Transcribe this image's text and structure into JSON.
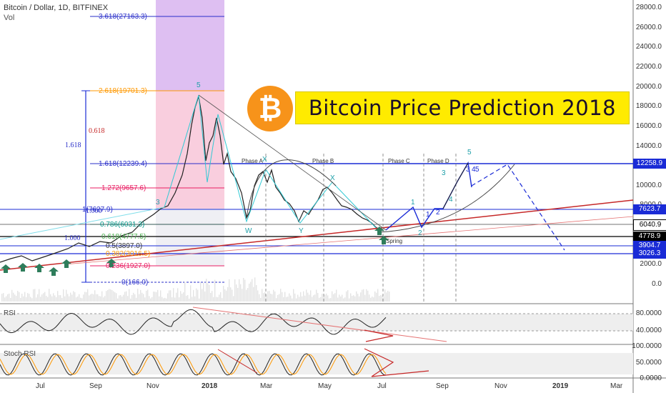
{
  "header": {
    "symbol": "Bitcoin / Dollar, 1D, BITFINEX",
    "volume_label": "Vol"
  },
  "title_banner": "Bitcoin Price Prediction 2018",
  "logo_glyph": "₿",
  "panels": {
    "rsi_label": "RSI",
    "stoch_label": "Stoch RSI"
  },
  "chart_data": {
    "type": "line",
    "x_ticks": [
      "Jul",
      "Sep",
      "Nov",
      "2018",
      "Mar",
      "May",
      "Jul",
      "Sep",
      "Nov",
      "2019",
      "Mar"
    ],
    "y_ticks": [
      "28000.0",
      "26000.0",
      "24000.0",
      "22000.0",
      "20000.0",
      "18000.0",
      "16000.0",
      "14000.0",
      "12000.0",
      "10000.0",
      "8000.0",
      "6000.0",
      "4000.0",
      "2000.0",
      "0.0"
    ],
    "price_tags": [
      {
        "label": "12258.9",
        "color": "#1a2bd6"
      },
      {
        "label": "7623.7",
        "color": "#1a2bd6"
      },
      {
        "label": "6040.9",
        "color": "#ffffff"
      },
      {
        "label": "4778.9",
        "color": "#000000"
      },
      {
        "label": "3904.7",
        "color": "#1a2bd6"
      },
      {
        "label": "3026.3",
        "color": "#1a2bd6"
      }
    ],
    "fib_levels_left": [
      {
        "label": "3.618(27163.3)",
        "color": "#2a2fc9"
      },
      {
        "label": "2.618(19701.3)",
        "color": "#ff9800"
      },
      {
        "label": "1.618(12239.4)",
        "color": "#2a2fc9"
      },
      {
        "label": "1.272(9657.6)",
        "color": "#e91e63"
      },
      {
        "label": "1(7627.9)",
        "color": "#2a2fc9"
      },
      {
        "label": "0.786(6031.3)",
        "color": "#009688"
      },
      {
        "label": "0.618(4777.5)",
        "color": "#4caf50"
      },
      {
        "label": "0.5(3897.0)",
        "color": "#333333"
      },
      {
        "label": "0.382(3016.5)",
        "color": "#ff9800"
      },
      {
        "label": "0.236(1927.0)",
        "color": "#e91e63"
      },
      {
        "label": "0(166.0)",
        "color": "#2a2fc9"
      }
    ],
    "fib_ratio_labels": [
      {
        "label": "1.618",
        "color": "#2a2fc9"
      },
      {
        "label": "0.618",
        "color": "#c62828"
      },
      {
        "label": "1.000",
        "color": "#2a2fc9"
      },
      {
        "label": "1.000",
        "color": "#2a2fc9"
      }
    ],
    "annotations": [
      "Phase A",
      "Phase B",
      "Phase C",
      "Phase D",
      "Spring",
      "W",
      "X",
      "Y",
      "5",
      "3",
      "1",
      "2",
      "4",
      "3",
      "5",
      "1",
      "2",
      "3",
      "4",
      "5",
      "X"
    ],
    "rsi_ticks": [
      "80.0000",
      "40.0000"
    ],
    "stoch_ticks": [
      "100.0000",
      "50.0000",
      "0.0000"
    ],
    "colors": {
      "price_line": "#222222",
      "fib_pink": "#f8c6d8",
      "fib_purple": "#d8b4f0",
      "accent_blue": "#1a2bd6",
      "trend_red": "#c62828"
    }
  }
}
